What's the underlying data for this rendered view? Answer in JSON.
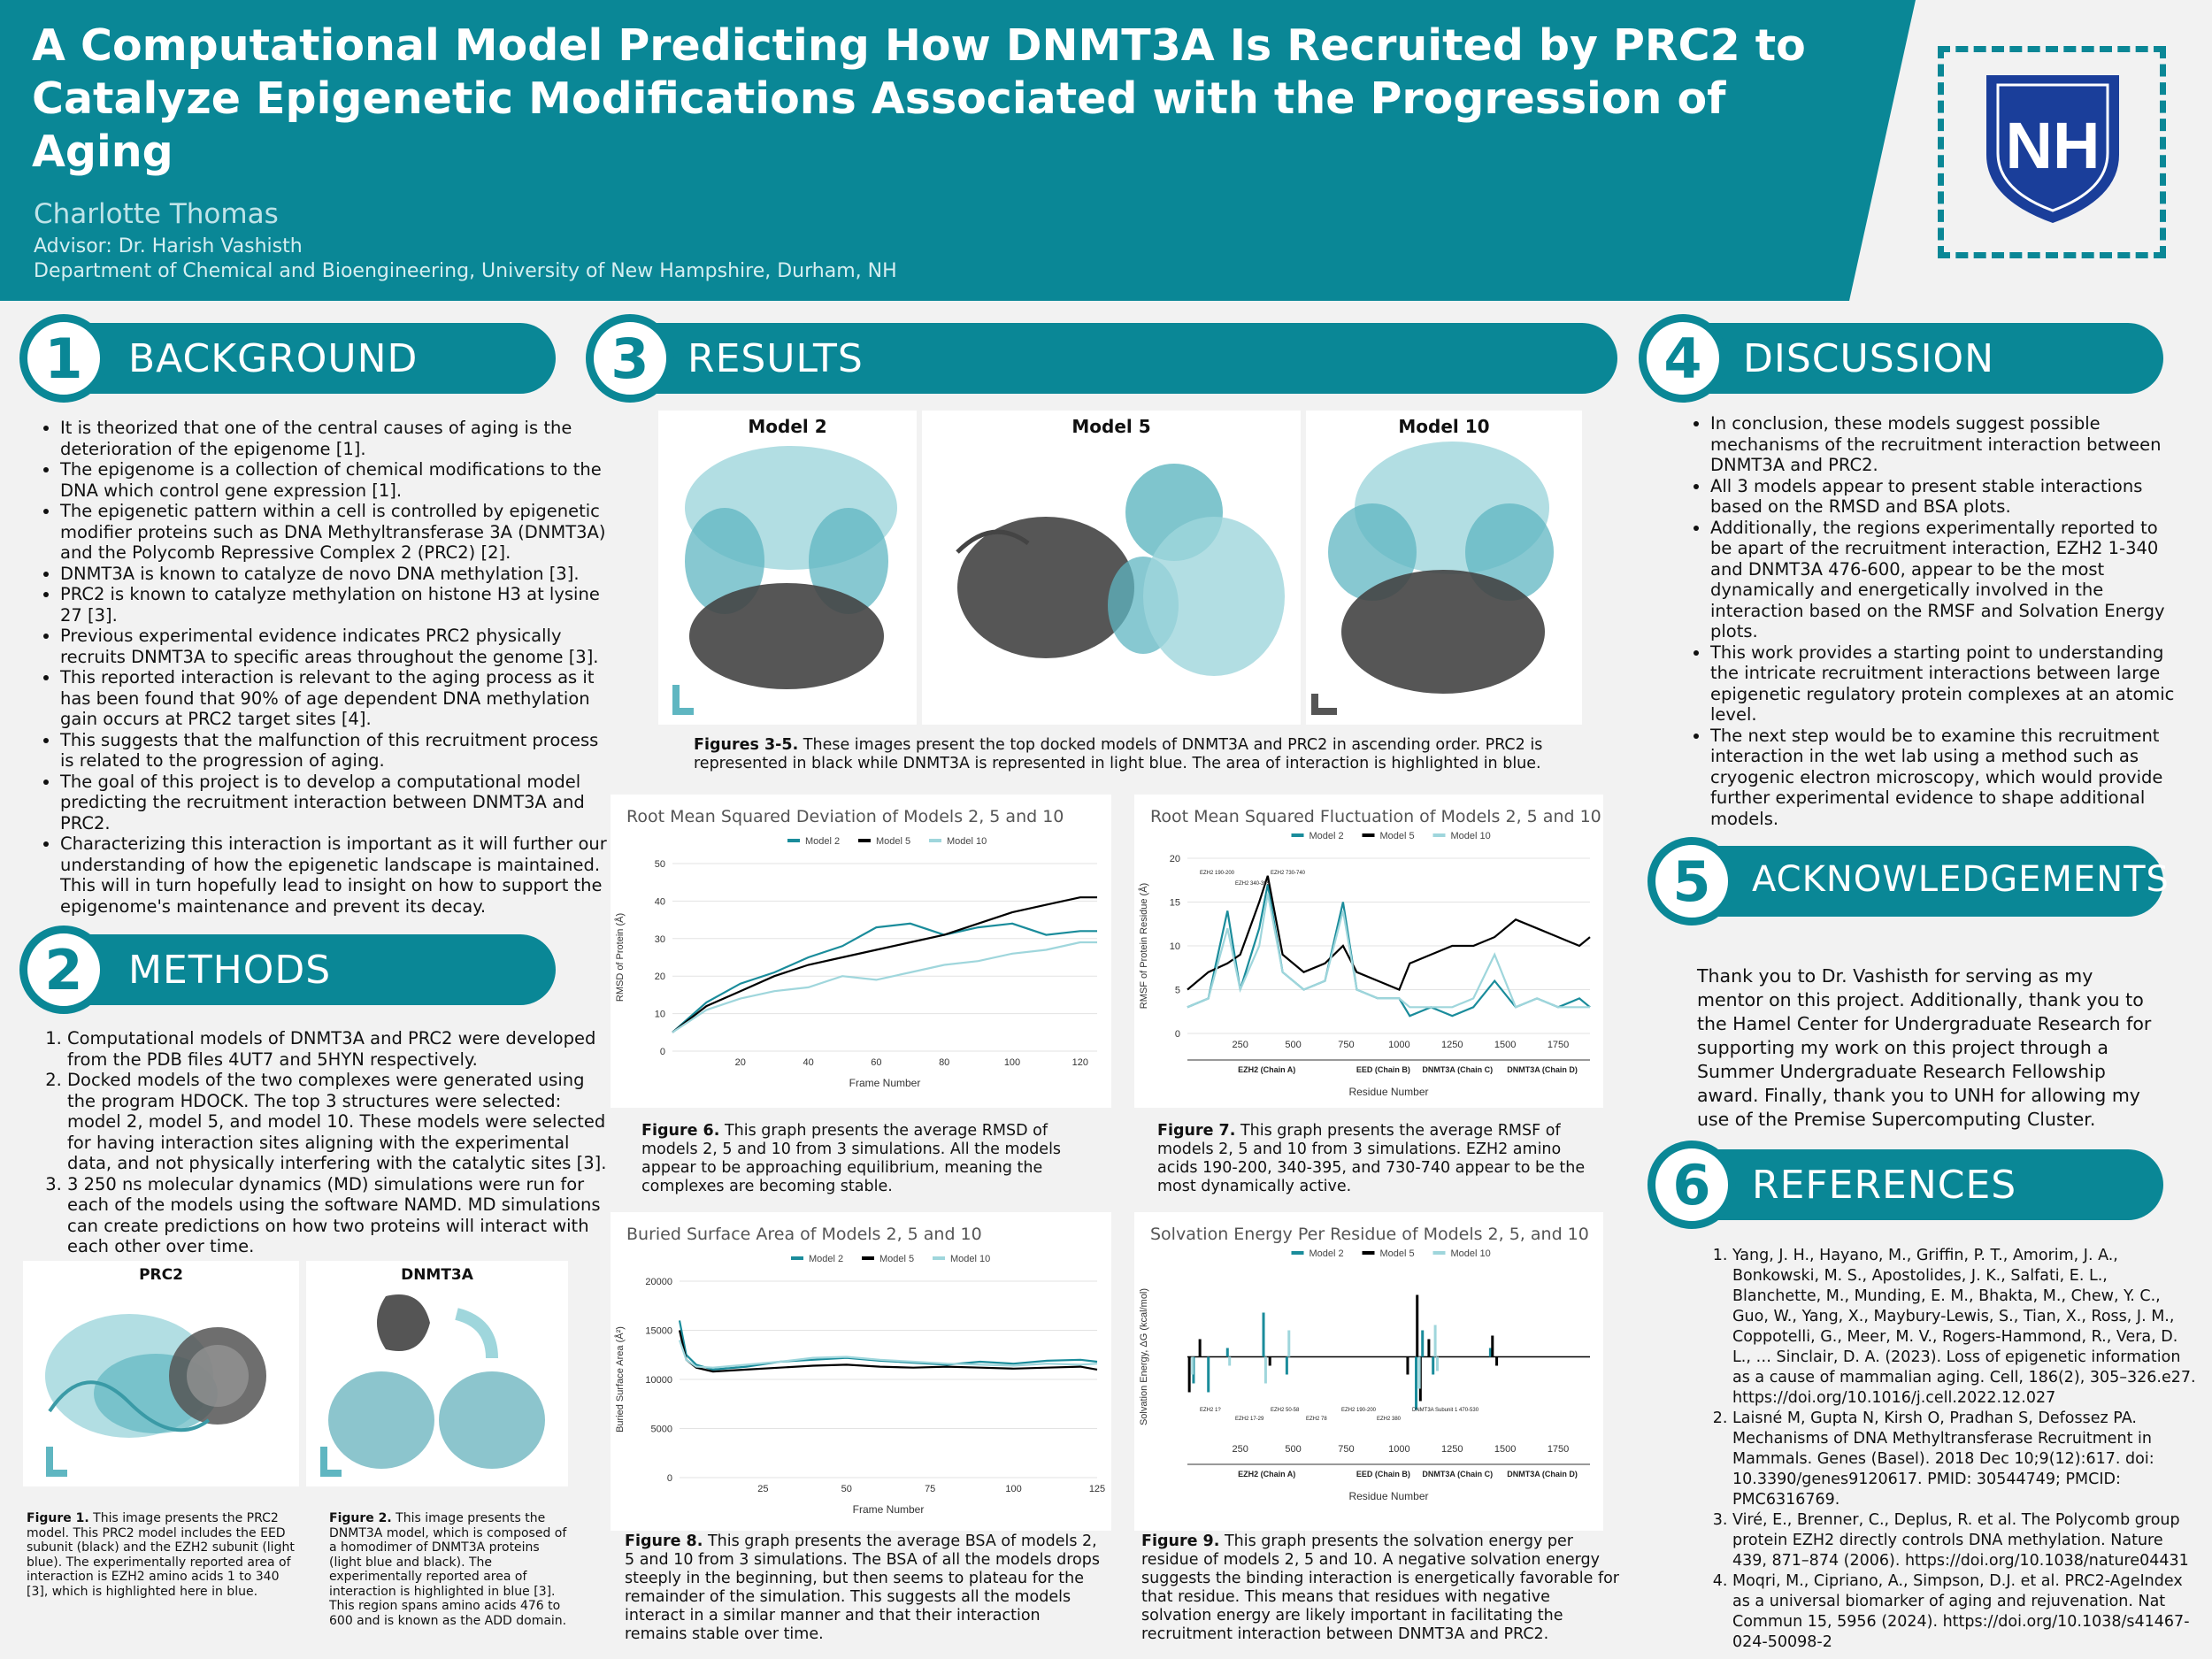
{
  "header": {
    "title": "A Computational Model Predicting How DNMT3A Is Recruited by PRC2 to Catalyze Epigenetic Modifications Associated with the Progression of Aging",
    "author": "Charlotte Thomas",
    "advisor": "Advisor: Dr. Harish Vashisth",
    "department": "Department of Chemical and Bioengineering, University of New Hampshire, Durham, NH",
    "logo_text": "NH"
  },
  "colors": {
    "teal": "#0a8796",
    "model2": "#1a8c9b",
    "model5": "#000000",
    "model10": "#9fd6dc"
  },
  "sections": {
    "background": {
      "num": "1",
      "title": "BACKGROUND"
    },
    "methods": {
      "num": "2",
      "title": "METHODS"
    },
    "results": {
      "num": "3",
      "title": "RESULTS"
    },
    "discussion": {
      "num": "4",
      "title": "DISCUSSION"
    },
    "acknowledgements": {
      "num": "5",
      "title": "ACKNOWLEDGEMENTS"
    },
    "references": {
      "num": "6",
      "title": "REFERENCES"
    }
  },
  "background_items": [
    "It is theorized that one of the central causes of aging is the deterioration of the epigenome [1].",
    "The epigenome is a collection of chemical modifications to the DNA which control gene expression [1].",
    "The epigenetic pattern within a cell is controlled by epigenetic modifier proteins such as DNA Methyltransferase 3A (DNMT3A) and the Polycomb Repressive Complex 2 (PRC2) [2].",
    "DNMT3A is known to catalyze de novo DNA methylation [3].",
    "PRC2 is known to catalyze methylation on histone H3 at lysine 27 [3].",
    "Previous experimental evidence indicates PRC2 physically recruits DNMT3A to specific areas throughout the genome [3].",
    "This reported interaction is relevant to the aging process as it has been found that 90% of age dependent DNA methylation gain occurs at PRC2 target sites [4].",
    "This suggests that the malfunction of this recruitment process is related to the progression of aging.",
    "The goal of this project is to develop a computational model predicting the recruitment interaction between DNMT3A and PRC2.",
    "Characterizing this interaction is important as it will further our understanding of how the epigenetic landscape is maintained. This will in turn hopefully lead to insight on how to support the epigenome's maintenance and prevent its decay."
  ],
  "methods_items": [
    "Computational models of DNMT3A and PRC2 were developed from the PDB files 4UT7 and 5HYN respectively.",
    "Docked models of the two complexes were generated using the program HDOCK. The top 3 structures were selected: model 2, model 5, and model 10. These models were selected for having interaction sites aligning with the experimental data, and not physically interfering with the catalytic sites [3].",
    "3 250 ns molecular dynamics (MD) simulations were run for each of the models using the software NAMD. MD simulations can create predictions on how two proteins will interact with each other over time."
  ],
  "method_figures": {
    "prc2_title": "PRC2",
    "dnmt3a_title": "DNMT3A",
    "fig1_label": "Figure 1.",
    "fig1_text": "This image presents the PRC2 model. This PRC2 model includes the EED subunit (black) and the EZH2 subunit (light blue). The experimentally reported area of interaction is EZH2 amino acids 1 to 340 [3], which is highlighted here in blue.",
    "fig2_label": "Figure 2.",
    "fig2_text": "This image presents the DNMT3A model, which is composed of a homodimer of DNMT3A proteins (light blue and black). The experimentally reported area of interaction is highlighted in blue [3]. This region spans amino acids 476 to 600 and is known as the ADD domain."
  },
  "results": {
    "model_titles": [
      "Model 2",
      "Model 5",
      "Model 10"
    ],
    "fig35_label": "Figures 3-5.",
    "fig35_text": "These images present the top docked models of DNMT3A and PRC2 in ascending order. PRC2 is represented in black while DNMT3A is represented in light blue. The area of interaction is highlighted in blue.",
    "fig6_label": "Figure 6.",
    "fig6_text": "This graph presents the average RMSD of models 2, 5 and 10 from 3 simulations. All the models appear to be approaching equilibrium, meaning the complexes are becoming stable.",
    "fig7_label": "Figure 7.",
    "fig7_text": "This graph presents the average RMSF of models 2, 5 and 10 from 3 simulations. EZH2 amino acids 190-200, 340-395, and 730-740 appear to be the most dynamically active.",
    "fig8_label": "Figure 8.",
    "fig8_text": "This graph presents the average BSA of models 2, 5 and 10 from 3 simulations. The BSA of all the models drops steeply in the beginning, but then seems to plateau for the remainder of the simulation. This suggests all the models interact in a similar manner and that their interaction remains stable over time.",
    "fig9_label": "Figure 9.",
    "fig9_text": "This graph presents the solvation energy per residue of models 2, 5 and 10. A negative solvation energy suggests the binding interaction is energetically favorable for that residue. This means that residues with negative solvation energy are likely important in facilitating the recruitment interaction between DNMT3A and PRC2."
  },
  "chart_data": [
    {
      "type": "line",
      "title": "Root Mean Squared Deviation of Models 2, 5 and 10",
      "xlabel": "Frame Number",
      "ylabel": "RMSD of Protein (Å)",
      "xlim": [
        0,
        125
      ],
      "ylim": [
        0,
        50
      ],
      "xticks": [
        20,
        40,
        60,
        80,
        100,
        120
      ],
      "yticks": [
        0,
        10,
        20,
        30,
        40,
        50
      ],
      "x": [
        0,
        10,
        20,
        30,
        40,
        50,
        60,
        70,
        80,
        90,
        100,
        110,
        120,
        125
      ],
      "series": [
        {
          "name": "Model 2",
          "values": [
            5,
            13,
            18,
            21,
            25,
            28,
            33,
            34,
            31,
            33,
            34,
            31,
            32,
            32
          ]
        },
        {
          "name": "Model 5",
          "values": [
            5,
            12,
            16,
            20,
            23,
            25,
            27,
            29,
            31,
            34,
            37,
            39,
            41,
            41
          ]
        },
        {
          "name": "Model 10",
          "values": [
            5,
            11,
            14,
            16,
            17,
            20,
            19,
            21,
            23,
            24,
            26,
            27,
            29,
            29
          ]
        }
      ]
    },
    {
      "type": "line",
      "title": "Root Mean Squared Fluctuation of Models 2, 5 and 10",
      "xlabel": "Residue Number",
      "ylabel": "RMSF of Protein Residue (Å)",
      "xlim": [
        1,
        1900
      ],
      "ylim": [
        0,
        20
      ],
      "xticks": [
        250,
        500,
        750,
        1000,
        1250,
        1500,
        1750
      ],
      "yticks": [
        0,
        5,
        10,
        15,
        20
      ],
      "chain_labels": [
        "EZH2 (Chain A)",
        "EED (Chain B)",
        "DNMT3A (Chain C)",
        "DNMT3A (Chain D)"
      ],
      "annotations": [
        "EZH2 190-200",
        "EZH2 340-395",
        "EZH2 730-740"
      ],
      "x": [
        1,
        100,
        190,
        250,
        340,
        380,
        450,
        550,
        650,
        735,
        800,
        900,
        1000,
        1050,
        1150,
        1250,
        1350,
        1450,
        1550,
        1650,
        1750,
        1850,
        1900
      ],
      "series": [
        {
          "name": "Model 2",
          "values": [
            3,
            4,
            14,
            5,
            12,
            17,
            7,
            5,
            6,
            15,
            5,
            4,
            4,
            2,
            3,
            2,
            3,
            6,
            3,
            4,
            3,
            4,
            3
          ]
        },
        {
          "name": "Model 5",
          "values": [
            5,
            7,
            8,
            9,
            15,
            18,
            9,
            7,
            8,
            10,
            7,
            6,
            5,
            8,
            9,
            10,
            10,
            11,
            13,
            12,
            11,
            10,
            11
          ]
        },
        {
          "name": "Model 10",
          "values": [
            3,
            4,
            12,
            5,
            10,
            16,
            7,
            5,
            6,
            14,
            5,
            4,
            4,
            3,
            3,
            3,
            4,
            9,
            3,
            4,
            3,
            3,
            3
          ]
        }
      ]
    },
    {
      "type": "line",
      "title": "Buried Surface Area of Models 2, 5 and 10",
      "xlabel": "Frame Number",
      "ylabel": "Buried Surface Area (Å²)",
      "xlim": [
        0,
        125
      ],
      "ylim": [
        0,
        20000
      ],
      "xticks": [
        25,
        50,
        75,
        100,
        125
      ],
      "yticks": [
        0,
        5000,
        10000,
        15000,
        20000
      ],
      "x": [
        0,
        2,
        5,
        10,
        20,
        30,
        40,
        50,
        60,
        70,
        80,
        90,
        100,
        110,
        120,
        125
      ],
      "series": [
        {
          "name": "Model 2",
          "values": [
            16000,
            12500,
            11500,
            11000,
            11300,
            11800,
            12000,
            12200,
            11900,
            11700,
            11500,
            11800,
            11600,
            11900,
            12000,
            11800
          ]
        },
        {
          "name": "Model 5",
          "values": [
            15000,
            12000,
            11200,
            10800,
            11000,
            11200,
            11400,
            11500,
            11300,
            11200,
            11300,
            11200,
            11100,
            11200,
            11300,
            11000
          ]
        },
        {
          "name": "Model 10",
          "values": [
            14000,
            12000,
            11300,
            11200,
            11500,
            11800,
            12200,
            12300,
            12000,
            11800,
            11600,
            11500,
            11400,
            11600,
            11500,
            11600
          ]
        }
      ]
    },
    {
      "type": "bar",
      "title": "Solvation Energy Per Residue of Models 2, 5, and 10",
      "xlabel": "Residue Number",
      "ylabel": "Solvation Energy, ΔG (kcal/mol)",
      "xlim": [
        1,
        1900
      ],
      "xticks": [
        250,
        500,
        750,
        1000,
        1250,
        1500,
        1750
      ],
      "chain_labels": [
        "EZH2 (Chain A)",
        "EED (Chain B)",
        "DNMT3A (Chain C)",
        "DNMT3A (Chain D)"
      ],
      "annotations": [
        "EZH2 1?",
        "EZH2 17-29",
        "EZH2 50-58",
        "EZH2 78",
        "EZH2 190-200",
        "EZH2 380",
        "DNMT3A Subunit 1 470-530"
      ],
      "series": [
        {
          "name": "Model 2",
          "points": [
            [
              30,
              -1.5
            ],
            [
              100,
              -2
            ],
            [
              190,
              0.5
            ],
            [
              360,
              2.5
            ],
            [
              470,
              -1
            ],
            [
              1080,
              -3
            ],
            [
              1110,
              1.5
            ],
            [
              1160,
              -1
            ],
            [
              1430,
              0.5
            ]
          ]
        },
        {
          "name": "Model 5",
          "points": [
            [
              10,
              -2
            ],
            [
              60,
              1
            ],
            [
              390,
              -0.5
            ],
            [
              1040,
              -1
            ],
            [
              1085,
              3.5
            ],
            [
              1100,
              -2.5
            ],
            [
              1140,
              1
            ],
            [
              1440,
              1.2
            ],
            [
              1460,
              -0.5
            ]
          ]
        },
        {
          "name": "Model 10",
          "points": [
            [
              25,
              -1
            ],
            [
              200,
              -0.5
            ],
            [
              370,
              -1.5
            ],
            [
              480,
              1.5
            ],
            [
              1095,
              -1.8
            ],
            [
              1170,
              1.8
            ],
            [
              1180,
              -0.8
            ]
          ]
        }
      ]
    }
  ],
  "chart_legend": [
    "Model 2",
    "Model 5",
    "Model 10"
  ],
  "discussion_items": [
    "In conclusion, these models suggest possible mechanisms of the recruitment interaction between DNMT3A and PRC2.",
    "All 3 models appear to present stable interactions based on the RMSD and BSA plots.",
    "Additionally, the regions experimentally reported to be apart of the recruitment interaction, EZH2 1-340 and DNMT3A 476-600, appear to be the most dynamically and energetically involved in the interaction based on the RMSF and Solvation Energy plots.",
    "This work provides a starting point to understanding the intricate recruitment interactions between large epigenetic regulatory protein complexes at an atomic level.",
    "The next step would be to examine this recruitment interaction in the wet lab using a method such as cryogenic electron microscopy, which would provide further experimental evidence to shape additional models."
  ],
  "acknowledgements_text": "Thank you to Dr. Vashisth for serving as my mentor on this project. Additionally, thank you to the Hamel Center for Undergraduate Research for supporting my work on this project through a Summer Undergraduate Research Fellowship award. Finally, thank you to UNH for allowing my use of the Premise Supercomputing Cluster.",
  "references": [
    "Yang, J. H., Hayano, M., Griffin, P. T., Amorim, J. A., Bonkowski, M. S., Apostolides, J. K., Salfati, E. L., Blanchette, M., Munding, E. M., Bhakta, M., Chew, Y. C., Guo, W., Yang, X., Maybury-Lewis, S., Tian, X., Ross, J. M., Coppotelli, G., Meer, M. V., Rogers-Hammond, R., Vera, D. L., … Sinclair, D. A. (2023). Loss of epigenetic information as a cause of mammalian aging. Cell, 186(2), 305–326.e27. https://doi.org/10.1016/j.cell.2022.12.027",
    "Laisné M, Gupta N, Kirsh O, Pradhan S, Defossez PA. Mechanisms of DNA Methyltransferase Recruitment in Mammals. Genes (Basel). 2018 Dec 10;9(12):617. doi: 10.3390/genes9120617. PMID: 30544749; PMCID: PMC6316769.",
    "Viré, E., Brenner, C., Deplus, R. et al. The Polycomb group protein EZH2 directly controls DNA methylation. Nature 439, 871–874 (2006). https://doi.org/10.1038/nature04431",
    "Moqri, M., Cipriano, A., Simpson, D.J. et al. PRC2-AgeIndex as a universal biomarker of aging and rejuvenation. Nat Commun 15, 5956 (2024). https://doi.org/10.1038/s41467-024-50098-2"
  ]
}
